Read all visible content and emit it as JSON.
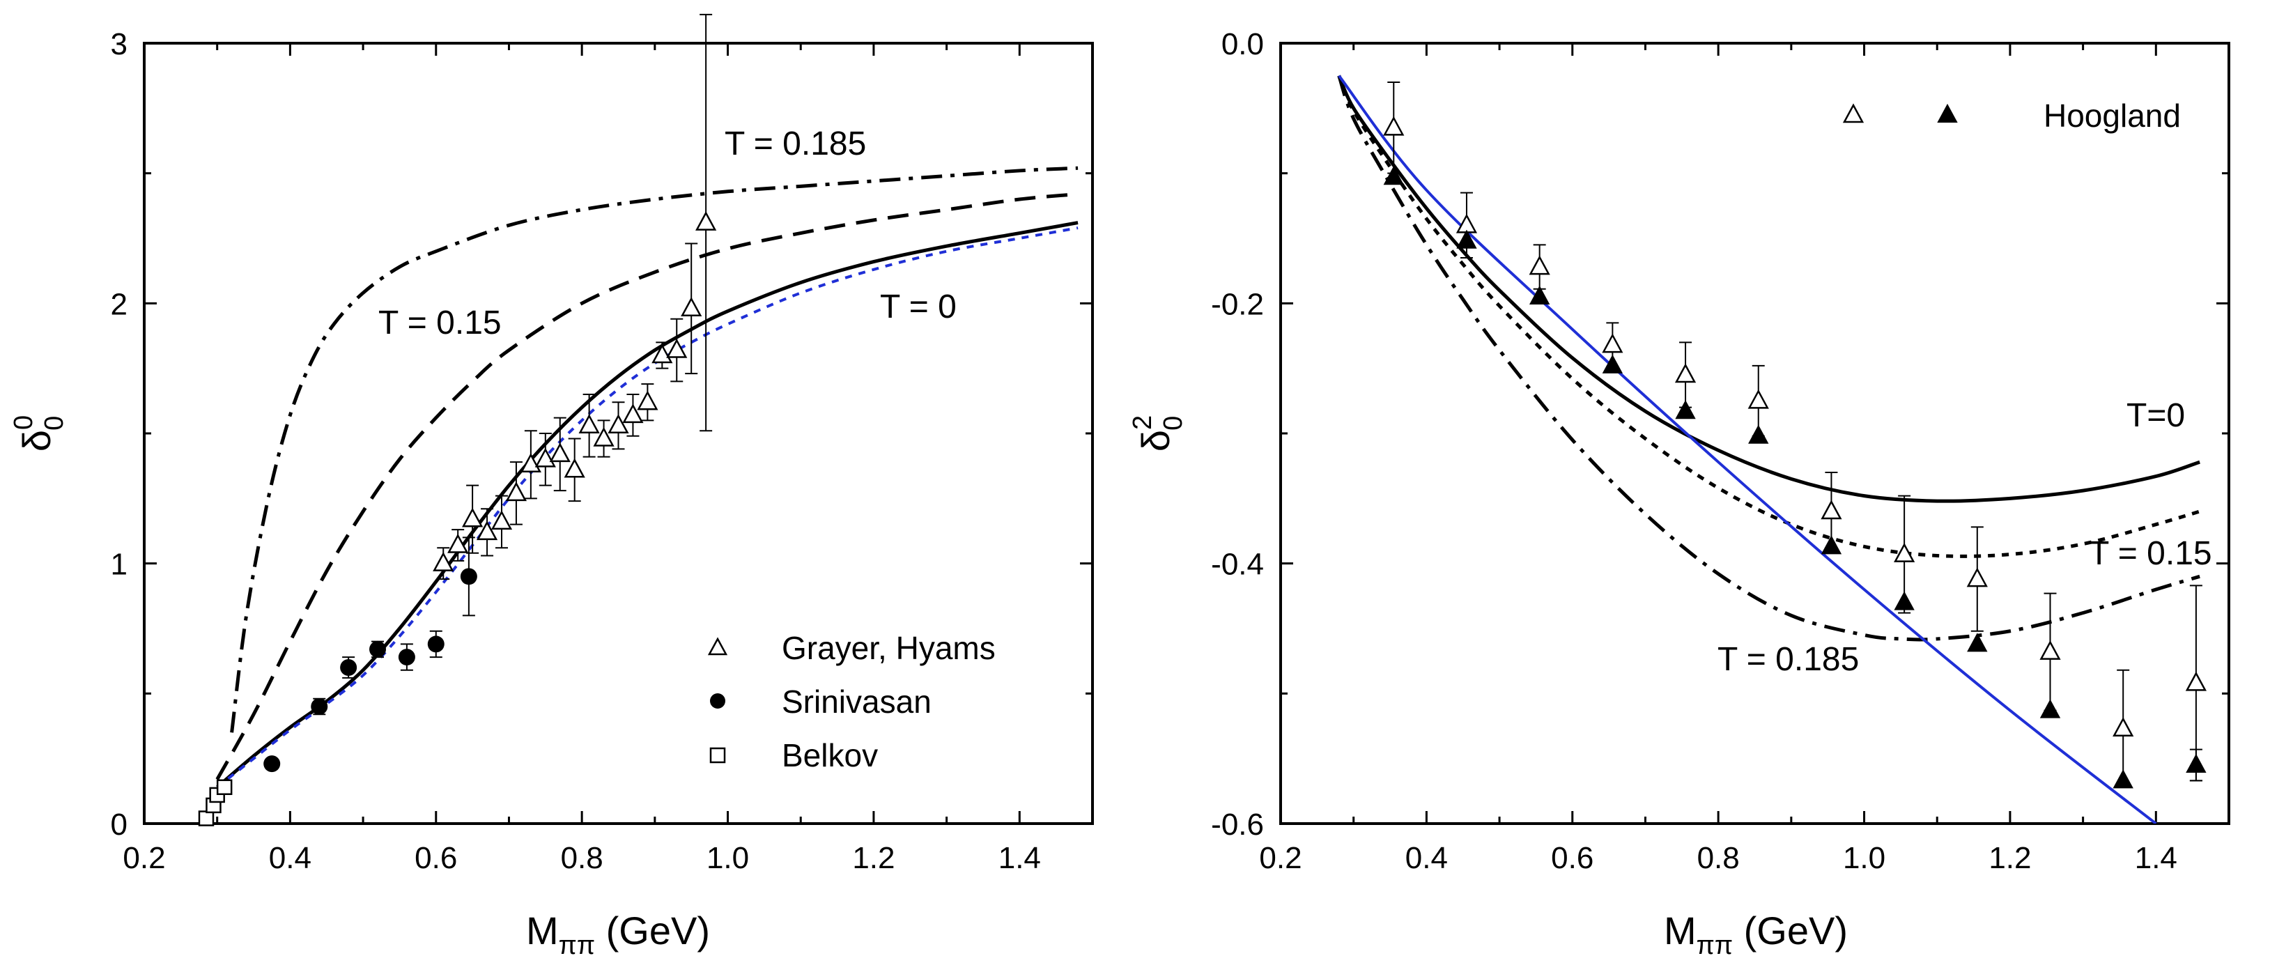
{
  "chart_data": [
    {
      "type": "line",
      "panel": "left",
      "xlabel": "M",
      "xlabel_sub": "ππ",
      "xlabel_unit": " (GeV)",
      "ylabel": "δ",
      "ylabel_sup": "0",
      "ylabel_sub": "0",
      "xlim": [
        0.2,
        1.5
      ],
      "ylim": [
        0,
        3
      ],
      "x_ticks": [
        0.2,
        0.4,
        0.6,
        0.8,
        1.0,
        1.2,
        1.4
      ],
      "x_tick_labels": [
        "0.2",
        "0.4",
        "0.6",
        "0.8",
        "1.0",
        "1.2",
        "1.4"
      ],
      "y_ticks": [
        0,
        1,
        2,
        3
      ],
      "y_tick_labels": [
        "0",
        "1",
        "2",
        "3"
      ],
      "annotations": [
        {
          "text": "T = 0.185",
          "x": 0.965,
          "y": 2.57
        },
        {
          "text": "T = 0.15",
          "x": 0.295,
          "y": 1.92
        },
        {
          "text": "T = 0",
          "x": 1.13,
          "y": 1.93
        }
      ],
      "series": [
        {
          "name": "T = 0",
          "style": "solid",
          "color": "#000000",
          "x": [
            0.3,
            0.35,
            0.4,
            0.45,
            0.5,
            0.55,
            0.6,
            0.65,
            0.7,
            0.75,
            0.8,
            0.85,
            0.9,
            0.95,
            1.0,
            1.1,
            1.2,
            1.3,
            1.4,
            1.48
          ],
          "y": [
            0.14,
            0.26,
            0.37,
            0.47,
            0.59,
            0.75,
            0.93,
            1.12,
            1.3,
            1.46,
            1.6,
            1.72,
            1.82,
            1.9,
            1.97,
            2.08,
            2.16,
            2.22,
            2.27,
            2.31
          ]
        },
        {
          "name": "T = 0 (blue dotted)",
          "style": "dotted",
          "color": "#1f2fd6",
          "x": [
            0.3,
            0.35,
            0.4,
            0.45,
            0.5,
            0.55,
            0.6,
            0.65,
            0.7,
            0.75,
            0.8,
            0.85,
            0.9,
            0.95,
            1.0,
            1.1,
            1.2,
            1.3,
            1.4,
            1.48
          ],
          "y": [
            0.14,
            0.25,
            0.36,
            0.46,
            0.57,
            0.72,
            0.89,
            1.07,
            1.25,
            1.41,
            1.55,
            1.67,
            1.77,
            1.85,
            1.92,
            2.04,
            2.13,
            2.2,
            2.25,
            2.29
          ]
        },
        {
          "name": "T = 0.15",
          "style": "dashed",
          "color": "#000000",
          "x": [
            0.3,
            0.35,
            0.4,
            0.45,
            0.5,
            0.55,
            0.6,
            0.65,
            0.7,
            0.8,
            0.9,
            1.0,
            1.1,
            1.2,
            1.3,
            1.4,
            1.48
          ],
          "y": [
            0.17,
            0.42,
            0.7,
            0.97,
            1.2,
            1.4,
            1.56,
            1.7,
            1.82,
            2.0,
            2.12,
            2.21,
            2.27,
            2.32,
            2.36,
            2.4,
            2.42
          ]
        },
        {
          "name": "T = 0.185",
          "style": "dashdot",
          "color": "#000000",
          "x": [
            0.32,
            0.34,
            0.37,
            0.4,
            0.43,
            0.46,
            0.5,
            0.55,
            0.6,
            0.7,
            0.8,
            0.9,
            1.0,
            1.1,
            1.2,
            1.3,
            1.4,
            1.48
          ],
          "y": [
            0.35,
            0.8,
            1.25,
            1.57,
            1.78,
            1.92,
            2.04,
            2.14,
            2.2,
            2.3,
            2.36,
            2.4,
            2.43,
            2.45,
            2.47,
            2.49,
            2.51,
            2.52
          ]
        }
      ],
      "points": [
        {
          "name": "Grayer, Hyams",
          "marker": "open-triangle",
          "x": [
            0.61,
            0.63,
            0.65,
            0.67,
            0.69,
            0.71,
            0.73,
            0.75,
            0.77,
            0.79,
            0.81,
            0.83,
            0.85,
            0.87,
            0.89,
            0.91,
            0.93,
            0.95,
            0.97
          ],
          "y": [
            1.0,
            1.07,
            1.17,
            1.12,
            1.16,
            1.27,
            1.38,
            1.4,
            1.42,
            1.36,
            1.53,
            1.48,
            1.53,
            1.57,
            1.62,
            1.8,
            1.82,
            1.98,
            2.31
          ],
          "err": [
            0.06,
            0.06,
            0.13,
            0.09,
            0.1,
            0.12,
            0.13,
            0.1,
            0.14,
            0.12,
            0.12,
            0.07,
            0.09,
            0.08,
            0.07,
            0.05,
            0.12,
            0.25,
            0.8
          ]
        },
        {
          "name": "Srinivasan",
          "marker": "filled-circle",
          "x": [
            0.375,
            0.44,
            0.48,
            0.52,
            0.56,
            0.6,
            0.645
          ],
          "y": [
            0.23,
            0.45,
            0.6,
            0.67,
            0.64,
            0.69,
            0.95
          ],
          "err": [
            0.0,
            0.03,
            0.04,
            0.03,
            0.05,
            0.05,
            0.15
          ]
        },
        {
          "name": "Belkov",
          "marker": "open-square",
          "x": [
            0.285,
            0.295,
            0.3,
            0.31
          ],
          "y": [
            0.02,
            0.07,
            0.11,
            0.14
          ],
          "err": [
            0,
            0,
            0,
            0
          ]
        }
      ],
      "legend": [
        "Grayer, Hyams",
        "Srinivasan",
        "Belkov"
      ],
      "legend_position": "bottom-right"
    },
    {
      "type": "line",
      "panel": "right",
      "xlabel": "M",
      "xlabel_sub": "ππ",
      "xlabel_unit": " (GeV)",
      "ylabel": "δ",
      "ylabel_sup": "2",
      "ylabel_sub": "0",
      "xlim": [
        0.2,
        1.5
      ],
      "ylim": [
        -0.6,
        0.0
      ],
      "x_ticks": [
        0.2,
        0.4,
        0.6,
        0.8,
        1.0,
        1.2,
        1.4
      ],
      "x_tick_labels": [
        "0.2",
        "0.4",
        "0.6",
        "0.8",
        "1.0",
        "1.2",
        "1.4"
      ],
      "y_ticks": [
        0.0,
        -0.2,
        -0.4,
        -0.6
      ],
      "y_tick_labels": [
        "0.0",
        "-0.2",
        "-0.4",
        "-0.6"
      ],
      "annotations": [
        {
          "text": "T=0",
          "x": 1.27,
          "y": -0.3
        },
        {
          "text": "T = 0.15",
          "x": 1.3,
          "y": -0.41
        },
        {
          "text": "T = 0.185",
          "x": 0.72,
          "y": -0.49
        }
      ],
      "series": [
        {
          "name": "T = 0",
          "style": "solid",
          "color": "#000000",
          "x": [
            0.28,
            0.3,
            0.35,
            0.4,
            0.45,
            0.5,
            0.6,
            0.7,
            0.8,
            0.9,
            1.0,
            1.1,
            1.2,
            1.3,
            1.4,
            1.46
          ],
          "y": [
            -0.025,
            -0.05,
            -0.09,
            -0.127,
            -0.16,
            -0.19,
            -0.242,
            -0.283,
            -0.313,
            -0.335,
            -0.348,
            -0.352,
            -0.35,
            -0.344,
            -0.333,
            -0.322
          ]
        },
        {
          "name": "T = 0.15",
          "style": "dotted",
          "color": "#000000",
          "x": [
            0.28,
            0.3,
            0.35,
            0.4,
            0.45,
            0.5,
            0.6,
            0.7,
            0.8,
            0.9,
            1.0,
            1.1,
            1.2,
            1.3,
            1.4,
            1.46
          ],
          "y": [
            -0.025,
            -0.052,
            -0.095,
            -0.135,
            -0.17,
            -0.202,
            -0.258,
            -0.304,
            -0.342,
            -0.37,
            -0.387,
            -0.394,
            -0.393,
            -0.385,
            -0.37,
            -0.36
          ]
        },
        {
          "name": "T = 0.185",
          "style": "dashdot",
          "color": "#000000",
          "x": [
            0.28,
            0.3,
            0.35,
            0.4,
            0.45,
            0.5,
            0.6,
            0.7,
            0.8,
            0.9,
            1.0,
            1.05,
            1.1,
            1.2,
            1.3,
            1.4,
            1.46
          ],
          "y": [
            -0.025,
            -0.058,
            -0.108,
            -0.155,
            -0.197,
            -0.236,
            -0.305,
            -0.362,
            -0.408,
            -0.44,
            -0.455,
            -0.458,
            -0.458,
            -0.452,
            -0.438,
            -0.42,
            -0.41
          ]
        },
        {
          "name": "Blue line",
          "style": "solid",
          "color": "#1f2fd6",
          "x": [
            0.28,
            0.4,
            0.6,
            0.8,
            1.0,
            1.2,
            1.4
          ],
          "y": [
            -0.025,
            -0.113,
            -0.22,
            -0.322,
            -0.42,
            -0.513,
            -0.6
          ]
        }
      ],
      "points": [
        {
          "name": "Hoogland (open)",
          "marker": "open-triangle",
          "x": [
            0.355,
            0.455,
            0.555,
            0.655,
            0.755,
            0.855,
            0.955,
            1.055,
            1.155,
            1.255,
            1.355,
            1.455
          ],
          "y": [
            -0.065,
            -0.14,
            -0.172,
            -0.232,
            -0.255,
            -0.275,
            -0.36,
            -0.393,
            -0.412,
            -0.468,
            -0.527,
            -0.492
          ],
          "err": [
            0.035,
            0.025,
            0.017,
            0.017,
            0.025,
            0.027,
            0.03,
            0.045,
            0.04,
            0.045,
            0.045,
            0.075
          ]
        },
        {
          "name": "Hoogland (filled)",
          "marker": "filled-triangle",
          "x": [
            0.355,
            0.455,
            0.555,
            0.655,
            0.755,
            0.855,
            0.955,
            1.055,
            1.155,
            1.255,
            1.355,
            1.455
          ],
          "y": [
            -0.103,
            -0.152,
            -0.195,
            -0.248,
            -0.283,
            -0.302,
            -0.387,
            -0.43,
            -0.462,
            -0.513,
            -0.567,
            -0.555
          ],
          "err": [
            0,
            0,
            0,
            0,
            0,
            0,
            0,
            0,
            0,
            0,
            0,
            0.012
          ]
        }
      ],
      "legend": [
        "Hoogland"
      ],
      "legend_position": "top-right"
    }
  ]
}
